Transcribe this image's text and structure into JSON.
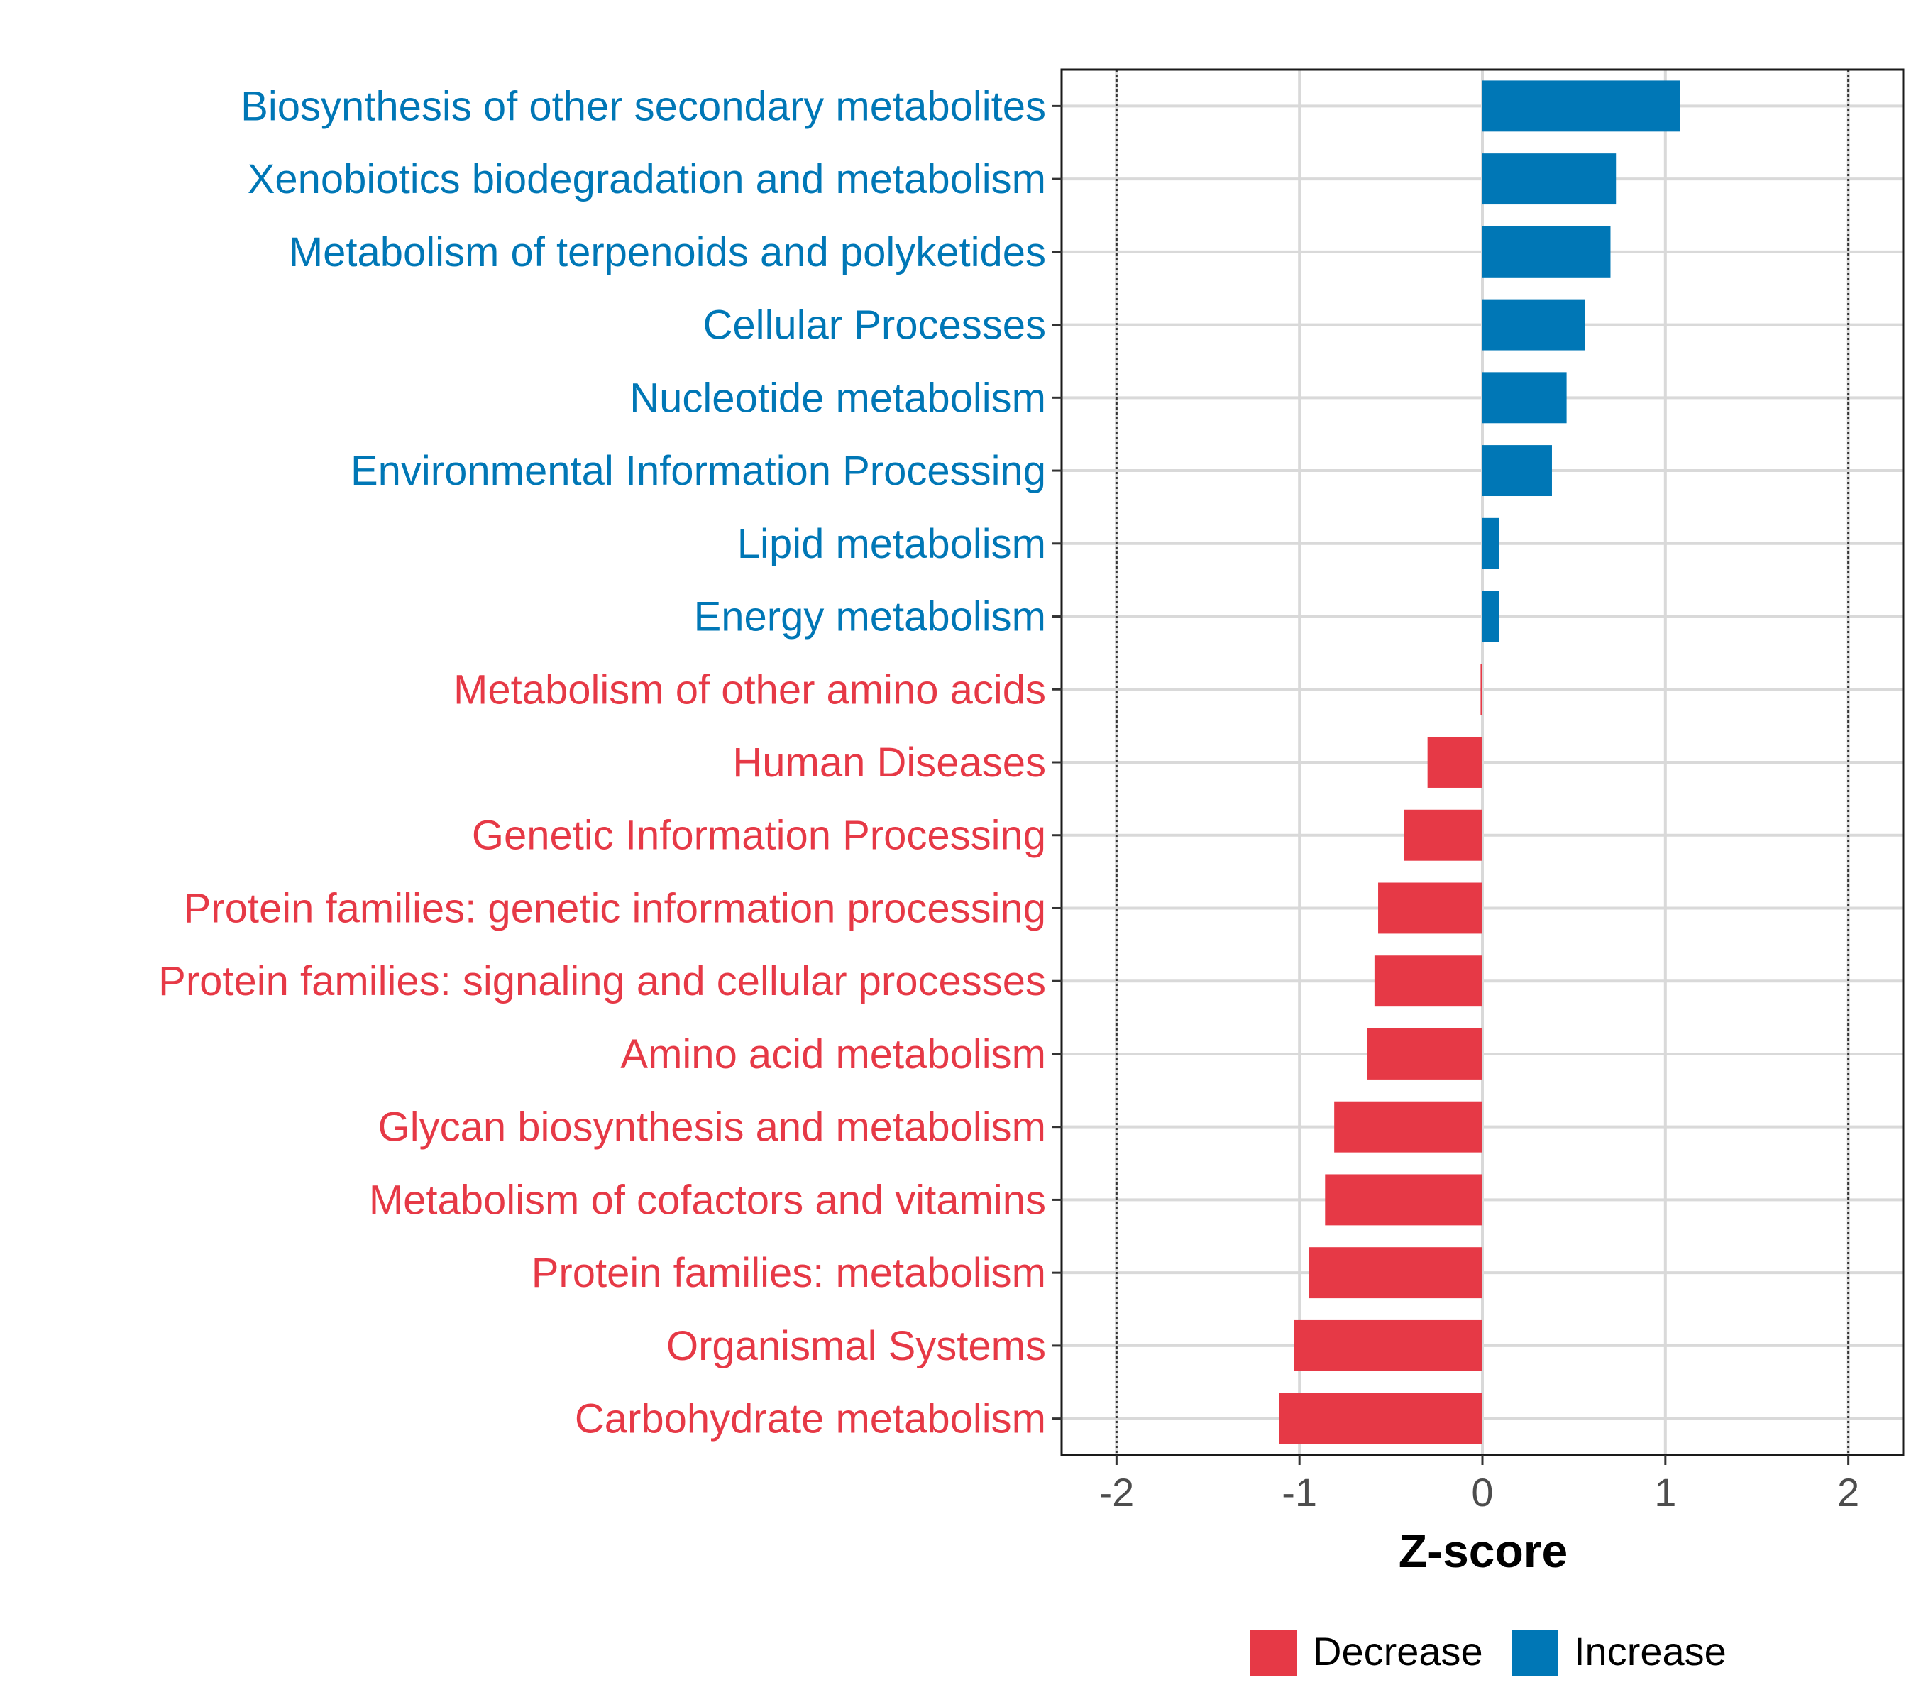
{
  "chart_data": {
    "type": "bar",
    "orientation": "horizontal",
    "title": "",
    "xlabel": "Z-score",
    "ylabel": "",
    "xlim": [
      -2.3,
      2.3
    ],
    "xticks": [
      -2,
      -1,
      0,
      1,
      2
    ],
    "xtick_labels": [
      "-2",
      "-1",
      "0",
      "1",
      "2"
    ],
    "reference_lines": [
      -2,
      2
    ],
    "grid": true,
    "categories": [
      "Biosynthesis of other secondary metabolites",
      "Xenobiotics biodegradation and metabolism",
      "Metabolism of terpenoids and polyketides",
      "Cellular Processes",
      "Nucleotide metabolism",
      "Environmental Information Processing",
      "Lipid metabolism",
      "Energy metabolism",
      "Metabolism of other amino acids",
      "Human Diseases",
      "Genetic Information Processing",
      "Protein families: genetic information processing",
      "Protein families: signaling and cellular processes",
      "Amino acid metabolism",
      "Glycan biosynthesis and metabolism",
      "Metabolism of cofactors and vitamins",
      "Protein families: metabolism",
      "Organismal Systems",
      "Carbohydrate metabolism"
    ],
    "values": [
      1.08,
      0.73,
      0.7,
      0.56,
      0.46,
      0.38,
      0.09,
      0.09,
      -0.01,
      -0.3,
      -0.43,
      -0.57,
      -0.59,
      -0.63,
      -0.81,
      -0.86,
      -0.95,
      -1.03,
      -1.11
    ],
    "groups": [
      "Increase",
      "Increase",
      "Increase",
      "Increase",
      "Increase",
      "Increase",
      "Increase",
      "Increase",
      "Decrease",
      "Decrease",
      "Decrease",
      "Decrease",
      "Decrease",
      "Decrease",
      "Decrease",
      "Decrease",
      "Decrease",
      "Decrease",
      "Decrease"
    ],
    "legend": [
      {
        "name": "Decrease",
        "color": "#e63946"
      },
      {
        "name": "Increase",
        "color": "#0077b6"
      }
    ],
    "legend_position": "bottom"
  }
}
